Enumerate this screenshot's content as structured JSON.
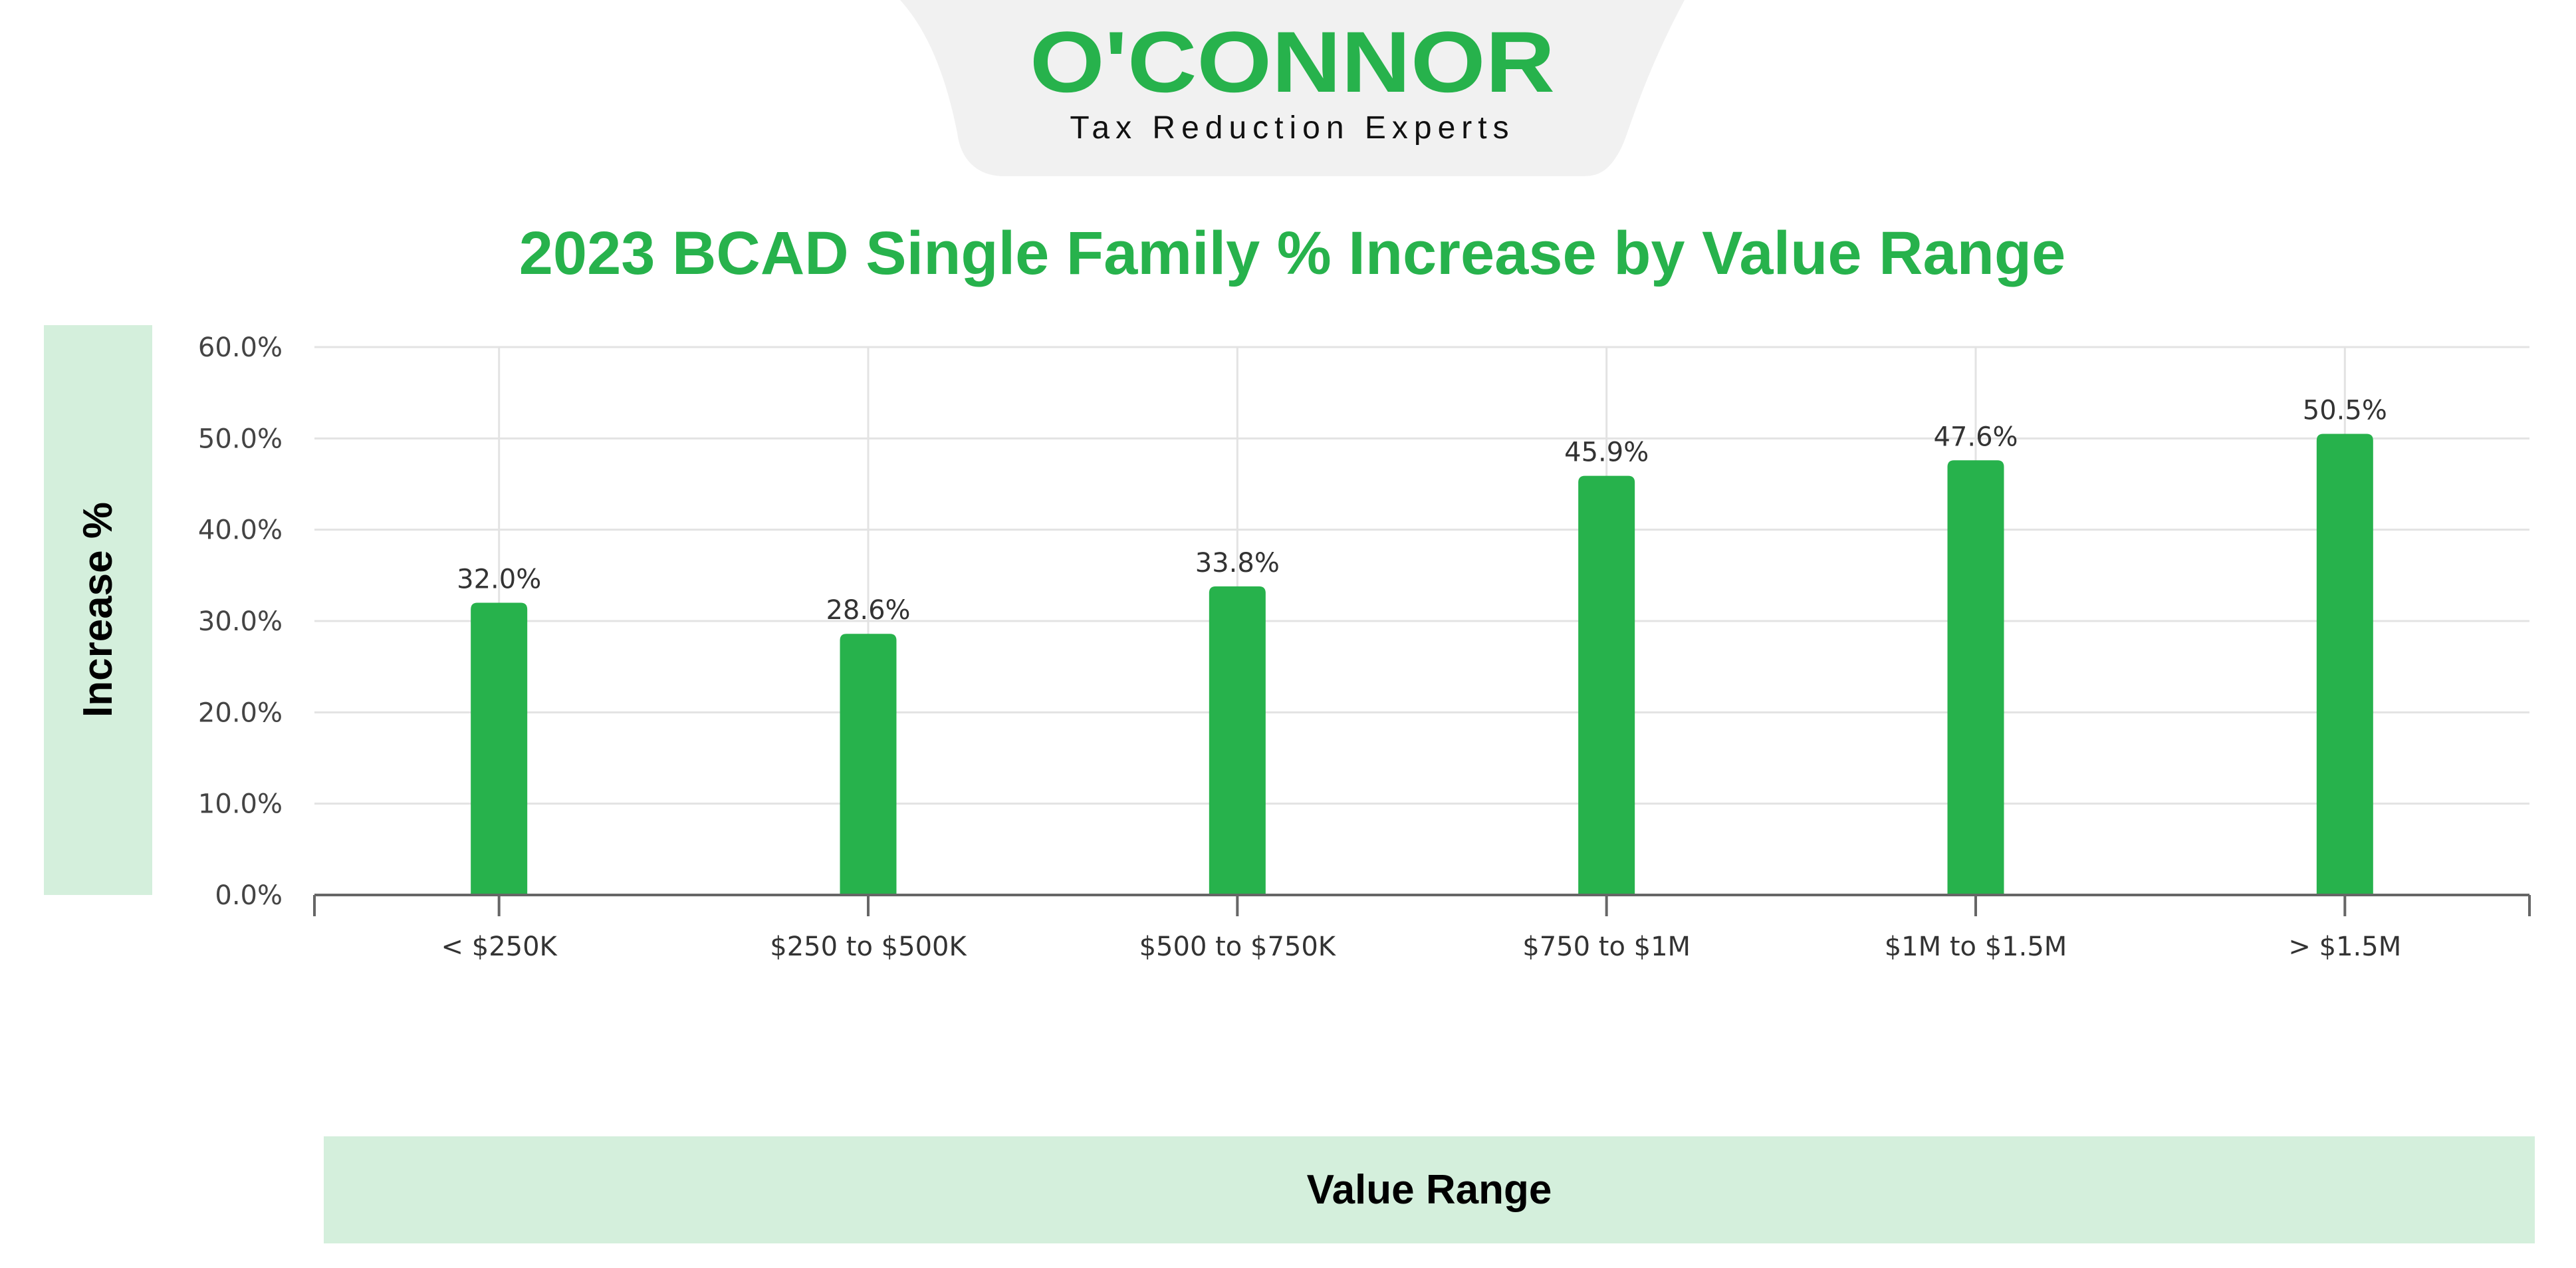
{
  "logo": {
    "brand": "O'CONNOR",
    "tagline": "Tax Reduction Experts"
  },
  "colors": {
    "accent": "#27b24c",
    "band": "#d4efdc",
    "logo_bg": "#f1f1f1",
    "grid": "#e3e3e3",
    "axis": "#666666"
  },
  "chart_data": {
    "type": "bar",
    "title": "2023 BCAD Single Family % Increase by Value Range",
    "xlabel": "Value Range",
    "ylabel": "Increase %",
    "categories": [
      "< $250K",
      "$250 to $500K",
      "$500 to $750K",
      "$750 to $1M",
      "$1M to $1.5M",
      "> $1.5M"
    ],
    "values": [
      32.0,
      28.6,
      33.8,
      45.9,
      47.6,
      50.5
    ],
    "data_labels": [
      "32.0%",
      "28.6%",
      "33.8%",
      "45.9%",
      "47.6%",
      "50.5%"
    ],
    "yticks": [
      "0.0%",
      "10.0%",
      "20.0%",
      "30.0%",
      "40.0%",
      "50.0%",
      "60.0%"
    ],
    "ylim": [
      0,
      60
    ],
    "grid": true,
    "legend": "none"
  }
}
